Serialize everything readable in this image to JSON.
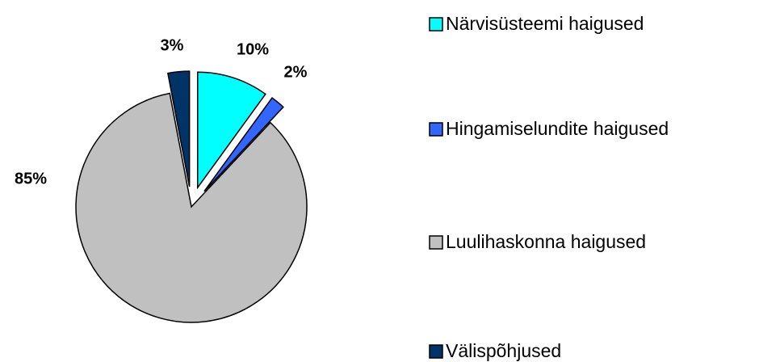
{
  "chart_data": {
    "type": "pie",
    "categories": [
      "Närvisüsteemi haigused",
      "Hingamiselundite haigused",
      "Luulihaskonna haigused",
      "Välispõhjused"
    ],
    "values": [
      10,
      2,
      85,
      3
    ],
    "value_labels": [
      "10%",
      "2%",
      "85%",
      "3%"
    ],
    "colors": [
      "#00ffff",
      "#3366ff",
      "#c0c0c0",
      "#003366"
    ],
    "legend": "right"
  }
}
